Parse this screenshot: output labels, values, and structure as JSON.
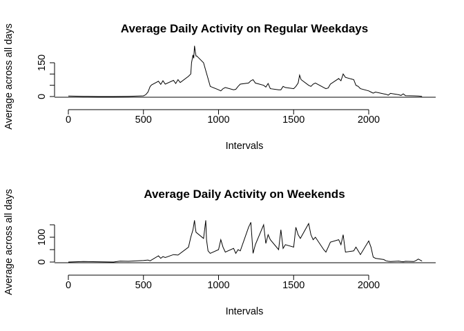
{
  "chart_data": [
    {
      "type": "line",
      "title": "Average Daily Activity on Regular Weekdays",
      "xlabel": "Intervals",
      "ylabel": "Average across all days",
      "xlim": [
        0,
        2355
      ],
      "ylim": [
        0,
        230
      ],
      "x_ticks": [
        0,
        500,
        1000,
        1500,
        2000
      ],
      "y_ticks": [
        0,
        50,
        100,
        150
      ],
      "y_tick_labels": [
        "0",
        "",
        "",
        "150"
      ],
      "grid": false,
      "x": [
        0,
        100,
        200,
        300,
        400,
        500,
        515,
        530,
        545,
        555,
        600,
        615,
        630,
        645,
        700,
        715,
        730,
        745,
        800,
        815,
        820,
        830,
        835,
        840,
        845,
        850,
        855,
        900,
        915,
        930,
        945,
        1000,
        1015,
        1030,
        1045,
        1100,
        1115,
        1130,
        1145,
        1200,
        1215,
        1230,
        1245,
        1300,
        1315,
        1330,
        1345,
        1400,
        1415,
        1430,
        1445,
        1500,
        1515,
        1530,
        1540,
        1550,
        1600,
        1615,
        1630,
        1645,
        1700,
        1715,
        1730,
        1745,
        1800,
        1815,
        1830,
        1845,
        1900,
        1915,
        1930,
        1945,
        2000,
        2015,
        2030,
        2045,
        2100,
        2115,
        2130,
        2145,
        2200,
        2215,
        2230,
        2245,
        2300,
        2330,
        2355
      ],
      "values": [
        2,
        1,
        0,
        0,
        1,
        3,
        8,
        20,
        45,
        52,
        68,
        54,
        70,
        55,
        72,
        58,
        75,
        62,
        90,
        100,
        150,
        185,
        170,
        225,
        200,
        180,
        180,
        150,
        115,
        80,
        45,
        30,
        25,
        35,
        40,
        30,
        32,
        45,
        55,
        60,
        70,
        75,
        60,
        50,
        42,
        58,
        35,
        30,
        30,
        45,
        40,
        35,
        45,
        60,
        95,
        75,
        50,
        45,
        55,
        60,
        40,
        35,
        38,
        55,
        80,
        70,
        100,
        85,
        75,
        50,
        45,
        35,
        25,
        20,
        15,
        20,
        12,
        10,
        6,
        14,
        8,
        5,
        12,
        4,
        3,
        2,
        1
      ]
    },
    {
      "type": "line",
      "title": "Average Daily Activity on Weekends",
      "xlabel": "Intervals",
      "ylabel": "Average across all days",
      "xlim": [
        0,
        2355
      ],
      "ylim": [
        0,
        178
      ],
      "x_ticks": [
        0,
        500,
        1000,
        1500,
        2000
      ],
      "y_ticks": [
        0,
        50,
        100,
        150
      ],
      "y_tick_labels": [
        "0",
        "",
        "100",
        ""
      ],
      "grid": false,
      "x": [
        0,
        100,
        200,
        300,
        345,
        400,
        500,
        530,
        545,
        600,
        615,
        630,
        645,
        700,
        730,
        800,
        815,
        830,
        840,
        845,
        850,
        900,
        915,
        920,
        930,
        945,
        1000,
        1015,
        1030,
        1045,
        1100,
        1115,
        1130,
        1145,
        1200,
        1215,
        1230,
        1245,
        1300,
        1315,
        1330,
        1345,
        1400,
        1415,
        1430,
        1445,
        1500,
        1515,
        1530,
        1545,
        1600,
        1615,
        1630,
        1645,
        1700,
        1715,
        1730,
        1745,
        1800,
        1815,
        1830,
        1845,
        1900,
        1915,
        1930,
        1945,
        2000,
        2015,
        2030,
        2045,
        2100,
        2115,
        2130,
        2145,
        2200,
        2215,
        2230,
        2245,
        2300,
        2315,
        2330,
        2355
      ],
      "values": [
        0,
        2,
        1,
        0,
        4,
        3,
        6,
        8,
        5,
        25,
        15,
        22,
        18,
        30,
        28,
        60,
        100,
        130,
        168,
        140,
        120,
        95,
        168,
        90,
        45,
        35,
        50,
        90,
        60,
        40,
        55,
        35,
        50,
        45,
        140,
        160,
        35,
        70,
        150,
        75,
        110,
        90,
        50,
        130,
        55,
        70,
        60,
        140,
        110,
        95,
        155,
        110,
        90,
        100,
        50,
        40,
        60,
        80,
        90,
        70,
        110,
        40,
        45,
        60,
        45,
        30,
        85,
        60,
        20,
        15,
        10,
        5,
        3,
        2,
        4,
        2,
        1,
        3,
        2,
        6,
        12,
        4
      ]
    }
  ]
}
